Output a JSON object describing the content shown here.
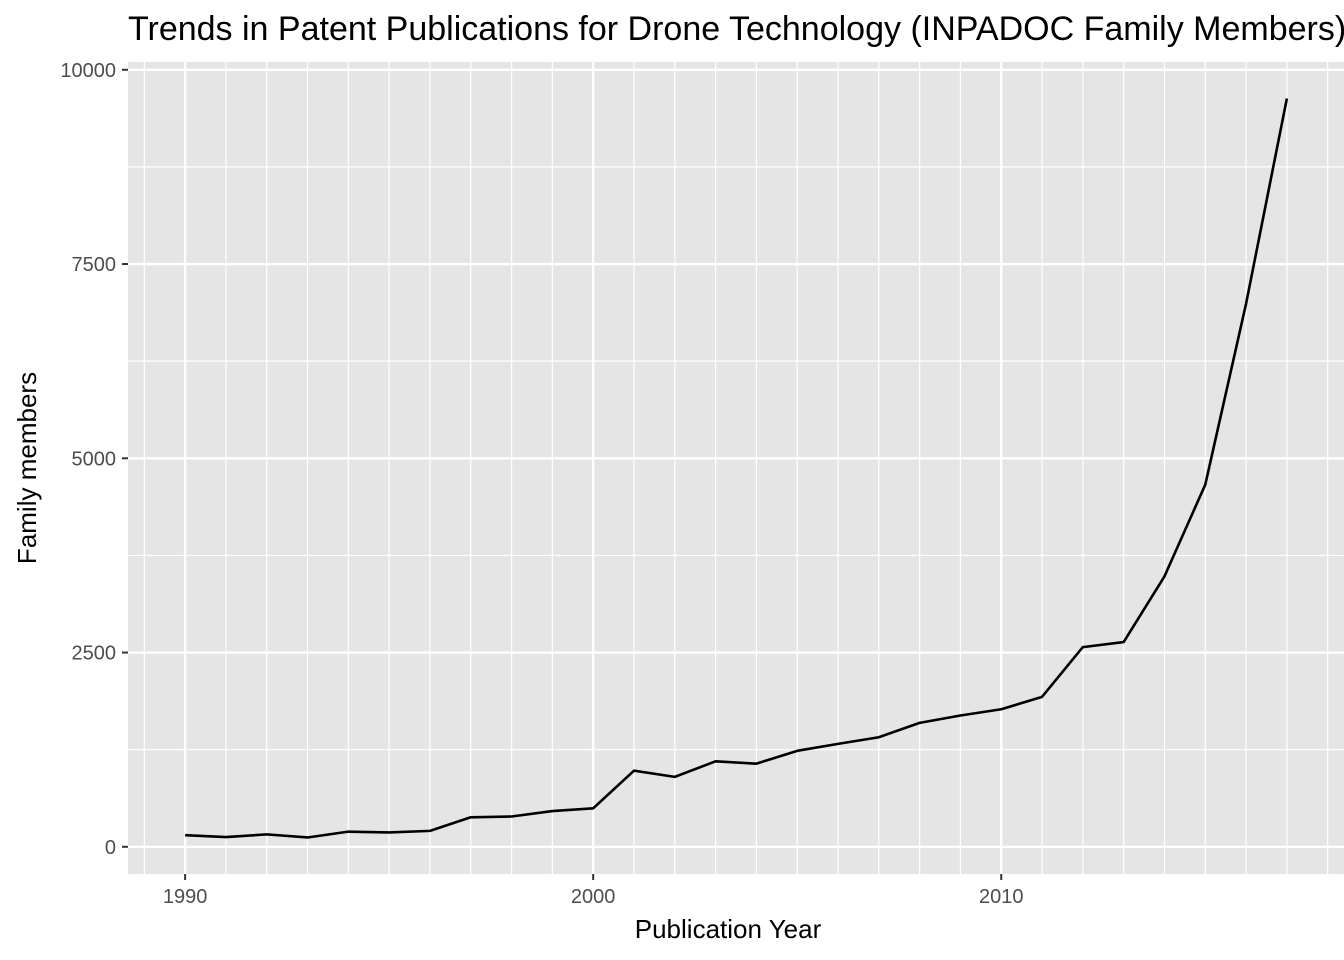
{
  "chart_data": {
    "type": "line",
    "title": "Trends in Patent Publications for Drone Technology (INPADOC Family Members)",
    "xlabel": "Publication Year",
    "ylabel": "Family members",
    "xlim": [
      1988.6,
      2018.4
    ],
    "ylim": [
      -350,
      10100
    ],
    "x_ticks": [
      1990,
      2000,
      2010
    ],
    "y_ticks": [
      0,
      2500,
      5000,
      7500,
      10000
    ],
    "grid": true,
    "background": "#e5e5e5",
    "line_color": "#000000",
    "series": [
      {
        "x": [
          1990,
          1991,
          1992,
          1993,
          1994,
          1995,
          1996,
          1997,
          1998,
          1999,
          2000,
          2001,
          2002,
          2003,
          2004,
          2005,
          2006,
          2007,
          2008,
          2009,
          2010,
          2011,
          2012,
          2013,
          2014,
          2015,
          2016,
          2017
        ],
        "values": [
          150,
          125,
          160,
          120,
          195,
          185,
          205,
          380,
          390,
          460,
          495,
          980,
          900,
          1100,
          1070,
          1235,
          1325,
          1410,
          1595,
          1690,
          1770,
          1930,
          2570,
          2635,
          3480,
          4660,
          6990,
          9630
        ]
      }
    ]
  }
}
